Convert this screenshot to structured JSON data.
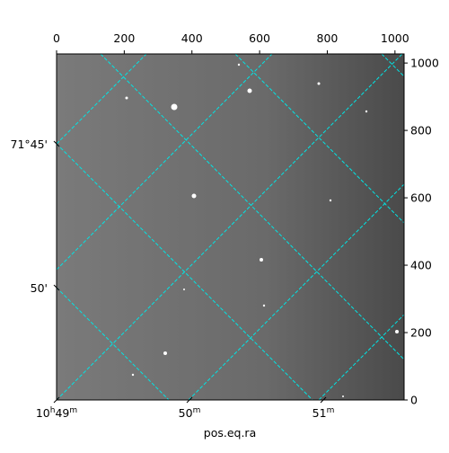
{
  "chart_data": {
    "type": "image",
    "xlabel": "pos.eq.ra",
    "xlim": [
      0,
      1027
    ],
    "xticks": [
      0,
      200,
      400,
      600,
      800,
      1000
    ],
    "ylim": [
      0,
      1027
    ],
    "yticks": [
      0,
      200,
      400,
      600,
      800,
      1000
    ],
    "ra_labels": [
      [
        "10",
        "h",
        "49",
        "m"
      ],
      [
        "50",
        "m"
      ],
      [
        "51",
        "m"
      ]
    ],
    "dec_labels": [
      "71°45'",
      "50'"
    ],
    "grid_color": "#00e5e5"
  }
}
